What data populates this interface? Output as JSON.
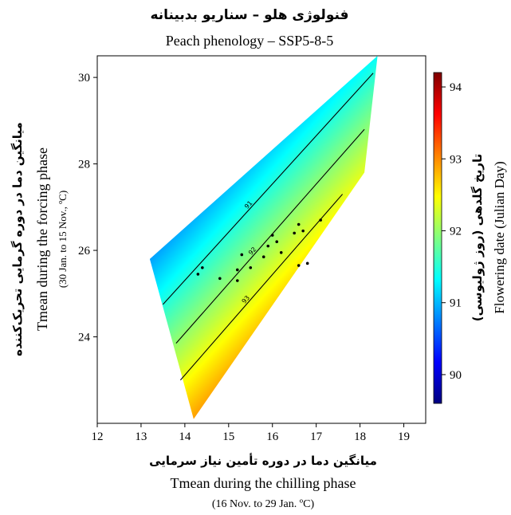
{
  "chart_data": {
    "type": "heatmap",
    "title_fa": "فنولوژی هلو – سناریو بدبینانه",
    "title": "Peach phenology – SSP5-8-5",
    "xlabel_fa": "میانگین دما در دوره تأمین نیاز سرمایی",
    "xlabel": "Tmean during the chilling phase",
    "xlabel_sub": "(16 Nov. to 29 Jan. ºC)",
    "ylabel_fa": "میانگین دما در دوره گرمایی تحریک‌کننده",
    "ylabel": "Tmean during the forcing phase",
    "ylabel_sub": "(30 Jan. to 15 Nov., ºC)",
    "colorbar_label_fa": "تاریخ گلدهی (روز ژولیوسی)",
    "colorbar_label": "Flowering date (Julian Day)",
    "xlim": [
      12,
      19.5
    ],
    "ylim": [
      22,
      30.5
    ],
    "x_ticks": [
      12,
      13,
      14,
      15,
      16,
      17,
      18,
      19
    ],
    "y_ticks": [
      24,
      26,
      28,
      30
    ],
    "color_range": [
      89.6,
      94.2
    ],
    "colorbar_ticks": [
      90,
      91,
      92,
      93,
      94
    ],
    "colormap": [
      "#00007f",
      "#0000ff",
      "#0080ff",
      "#00ffff",
      "#80ff80",
      "#ffff00",
      "#ff8000",
      "#ff0000",
      "#7f0000"
    ],
    "domain_polygon": [
      [
        13.2,
        25.8
      ],
      [
        18.4,
        30.5
      ],
      [
        18.1,
        27.8
      ],
      [
        14.2,
        22.1
      ]
    ],
    "contours": [
      {
        "level": 91,
        "label": "91",
        "from": [
          13.5,
          24.75
        ],
        "to": [
          18.3,
          30.1
        ]
      },
      {
        "level": 92,
        "label": "92",
        "from": [
          13.8,
          23.85
        ],
        "to": [
          18.1,
          28.8
        ]
      },
      {
        "level": 93,
        "label": "93",
        "from": [
          13.9,
          23.0
        ],
        "to": [
          17.6,
          27.3
        ]
      }
    ],
    "observations": [
      {
        "x": 14.3,
        "y": 25.45
      },
      {
        "x": 14.4,
        "y": 25.6
      },
      {
        "x": 14.8,
        "y": 25.35
      },
      {
        "x": 15.2,
        "y": 25.3
      },
      {
        "x": 15.2,
        "y": 25.55
      },
      {
        "x": 15.3,
        "y": 25.9
      },
      {
        "x": 15.5,
        "y": 25.6
      },
      {
        "x": 15.8,
        "y": 25.85
      },
      {
        "x": 15.9,
        "y": 26.1
      },
      {
        "x": 16.0,
        "y": 26.35
      },
      {
        "x": 16.1,
        "y": 26.2
      },
      {
        "x": 16.2,
        "y": 25.95
      },
      {
        "x": 16.5,
        "y": 26.4
      },
      {
        "x": 16.6,
        "y": 26.6
      },
      {
        "x": 16.6,
        "y": 25.65
      },
      {
        "x": 16.7,
        "y": 26.45
      },
      {
        "x": 16.8,
        "y": 25.7
      },
      {
        "x": 17.1,
        "y": 26.7
      }
    ]
  }
}
